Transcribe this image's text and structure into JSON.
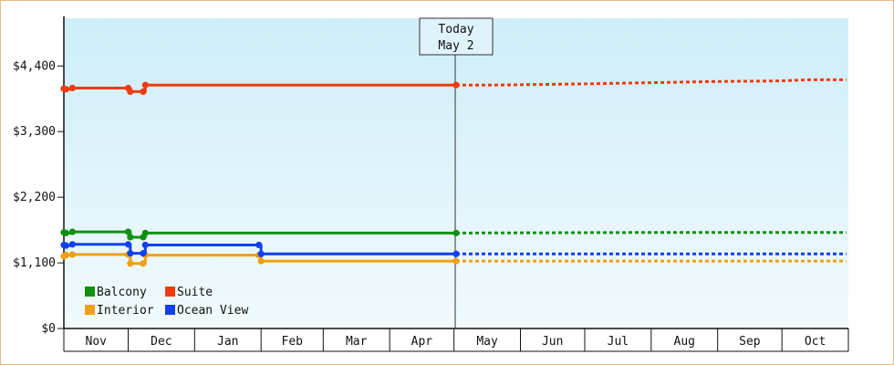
{
  "chart_data": {
    "type": "line",
    "annotation": {
      "line1": "Today",
      "line2": "May 2"
    },
    "y_ticks": [
      {
        "value": 0,
        "label": "$0"
      },
      {
        "value": 1100,
        "label": "$1,100"
      },
      {
        "value": 2200,
        "label": "$2,200"
      },
      {
        "value": 3300,
        "label": "$3,300"
      },
      {
        "value": 4400,
        "label": "$4,400"
      }
    ],
    "ylim": [
      0,
      5200
    ],
    "months": [
      "Nov",
      "Dec",
      "Jan",
      "Feb",
      "Mar",
      "Apr",
      "May",
      "Jun",
      "Jul",
      "Aug",
      "Sep",
      "Oct"
    ],
    "grid": "vertical-today-only",
    "legend_position": "bottom-left",
    "series": [
      {
        "name": "Balcony",
        "color": "#109010",
        "points": [
          {
            "date": "2023-11-01",
            "value": 1610
          },
          {
            "date": "2023-11-02",
            "value": 1600
          },
          {
            "date": "2023-11-05",
            "value": 1620
          },
          {
            "date": "2023-12-01",
            "value": 1620
          },
          {
            "date": "2023-12-02",
            "value": 1530
          },
          {
            "date": "2023-12-08",
            "value": 1530
          },
          {
            "date": "2023-12-09",
            "value": 1600
          },
          {
            "date": "2024-05-02",
            "value": 1600
          }
        ],
        "forecast": [
          {
            "date": "2024-05-02",
            "value": 1600
          },
          {
            "date": "2024-08-01",
            "value": 1610
          },
          {
            "date": "2024-10-31",
            "value": 1610
          }
        ]
      },
      {
        "name": "Suite",
        "color": "#f03a10",
        "points": [
          {
            "date": "2023-11-01",
            "value": 4020
          },
          {
            "date": "2023-11-02",
            "value": 4010
          },
          {
            "date": "2023-11-05",
            "value": 4030
          },
          {
            "date": "2023-12-01",
            "value": 4030
          },
          {
            "date": "2023-12-02",
            "value": 3970
          },
          {
            "date": "2023-12-08",
            "value": 3970
          },
          {
            "date": "2023-12-09",
            "value": 4080
          },
          {
            "date": "2024-05-02",
            "value": 4080
          }
        ],
        "forecast": [
          {
            "date": "2024-05-02",
            "value": 4080
          },
          {
            "date": "2024-05-20",
            "value": 4080
          },
          {
            "date": "2024-07-01",
            "value": 4100
          },
          {
            "date": "2024-07-31",
            "value": 4120
          },
          {
            "date": "2024-08-31",
            "value": 4140
          },
          {
            "date": "2024-09-30",
            "value": 4150
          },
          {
            "date": "2024-10-15",
            "value": 4170
          },
          {
            "date": "2024-10-31",
            "value": 4170
          }
        ]
      },
      {
        "name": "Interior",
        "color": "#f0a010",
        "points": [
          {
            "date": "2023-11-01",
            "value": 1210
          },
          {
            "date": "2023-11-02",
            "value": 1230
          },
          {
            "date": "2023-11-05",
            "value": 1240
          },
          {
            "date": "2023-12-01",
            "value": 1240
          },
          {
            "date": "2023-12-02",
            "value": 1090
          },
          {
            "date": "2023-12-08",
            "value": 1090
          },
          {
            "date": "2023-12-09",
            "value": 1230
          },
          {
            "date": "2024-01-31",
            "value": 1230
          },
          {
            "date": "2024-02-01",
            "value": 1130
          },
          {
            "date": "2024-05-02",
            "value": 1130
          }
        ],
        "forecast": [
          {
            "date": "2024-05-02",
            "value": 1130
          },
          {
            "date": "2024-10-31",
            "value": 1130
          }
        ]
      },
      {
        "name": "Ocean View",
        "color": "#1040f0",
        "points": [
          {
            "date": "2023-11-01",
            "value": 1400
          },
          {
            "date": "2023-11-02",
            "value": 1390
          },
          {
            "date": "2023-11-05",
            "value": 1410
          },
          {
            "date": "2023-12-01",
            "value": 1410
          },
          {
            "date": "2023-12-02",
            "value": 1260
          },
          {
            "date": "2023-12-08",
            "value": 1260
          },
          {
            "date": "2023-12-09",
            "value": 1400
          },
          {
            "date": "2024-01-31",
            "value": 1400
          },
          {
            "date": "2024-02-01",
            "value": 1250
          },
          {
            "date": "2024-05-02",
            "value": 1250
          }
        ],
        "forecast": [
          {
            "date": "2024-05-02",
            "value": 1250
          },
          {
            "date": "2024-10-31",
            "value": 1250
          }
        ]
      }
    ]
  }
}
